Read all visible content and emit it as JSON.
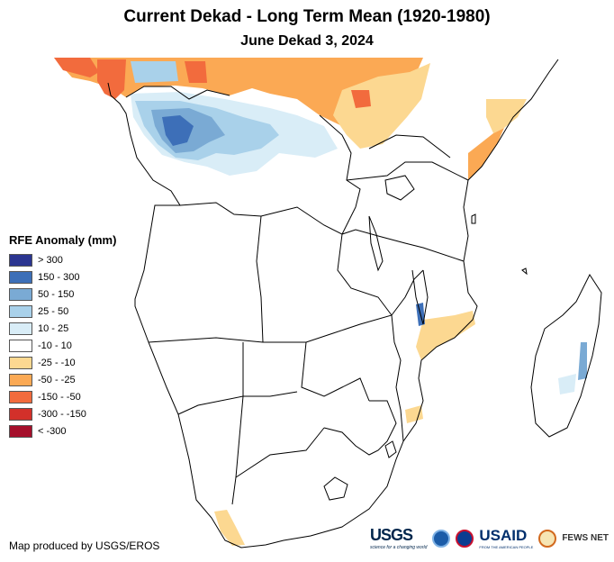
{
  "title": "Current Dekad - Long Term Mean (1920-1980)",
  "subtitle": "June Dekad 3, 2024",
  "legend": {
    "title": "RFE Anomaly (mm)",
    "items": [
      {
        "label": "> 300",
        "color": "#2b3590"
      },
      {
        "label": "150 - 300",
        "color": "#3d6fb8"
      },
      {
        "label": "50 - 150",
        "color": "#7aaad4"
      },
      {
        "label": "25 - 50",
        "color": "#a9d1ea"
      },
      {
        "label": "10 - 25",
        "color": "#d9edf7"
      },
      {
        "label": "-10 - 10",
        "color": "#ffffff"
      },
      {
        "label": "-25 - -10",
        "color": "#fcd891"
      },
      {
        "label": "-50 - -25",
        "color": "#fba954"
      },
      {
        "label": "-150 - -50",
        "color": "#f26b3d"
      },
      {
        "label": "-300 - -150",
        "color": "#d3302a"
      },
      {
        "label": "< -300",
        "color": "#a50f2b"
      }
    ]
  },
  "credit": "Map produced by USGS/EROS",
  "logos": {
    "usgs": "USGS",
    "usgs_tagline": "science for a changing world",
    "usaid": "USAID",
    "usaid_tagline": "FROM THE AMERICAN PEOPLE",
    "fews": "FEWS NET"
  }
}
